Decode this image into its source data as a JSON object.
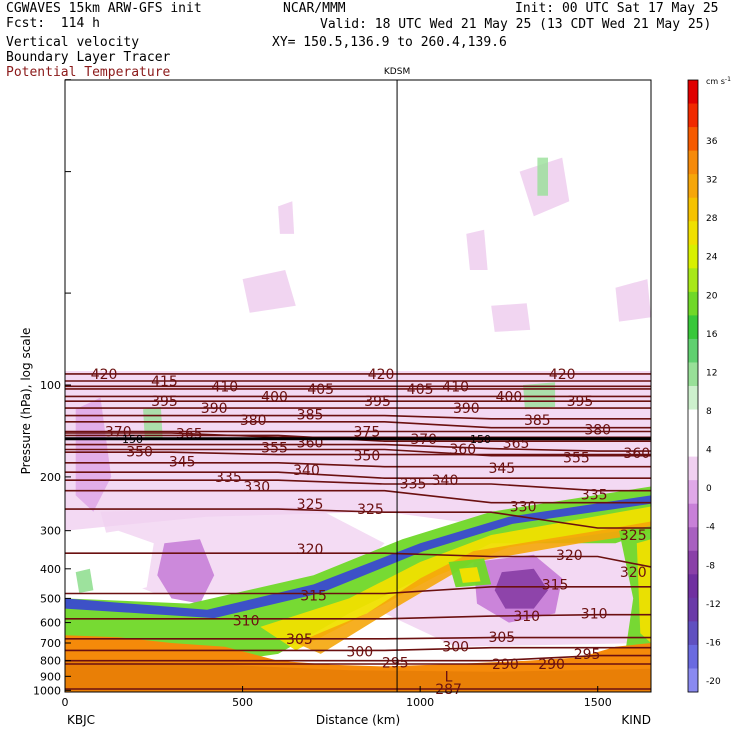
{
  "header": {
    "model": "CGWAVES 15km ARW-GFS init",
    "forecast": "Fcst:  114 h",
    "org": "NCAR/MMM",
    "init": "Init: 00 UTC Sat 17 May 25",
    "valid": "Valid: 18 UTC Wed 21 May 25 (13 CDT Wed 21 May 25)",
    "xy": "XY= 150.5,136.9 to 260.4,139.6",
    "fields": [
      "Vertical velocity",
      "Boundary Layer Tracer",
      "Potential Temperature"
    ]
  },
  "colors": {
    "theta": "#6b1010",
    "terrain": "#f58a0a",
    "terrain_dark": "#d46a00"
  },
  "chart_data": {
    "type": "heatmap",
    "xlabel": "Distance (km)",
    "ylabel": "Pressure (hPa), log scale",
    "x_ticks": [
      0,
      500,
      1000,
      1500
    ],
    "xlim": [
      0,
      1650
    ],
    "y_ticks": [
      100,
      200,
      300,
      400,
      500,
      600,
      700,
      800,
      900,
      1000
    ],
    "y_scale": "log",
    "endpoints": {
      "left": "KBJC",
      "right": "KIND"
    },
    "station_marker": {
      "label": "KDSM",
      "x": 935
    },
    "tropopause_marker": {
      "label": "150",
      "pressure": 150
    },
    "colorbar": {
      "unit": "cm s",
      "unit_exp": "-1",
      "ticks": [
        36,
        32,
        28,
        24,
        20,
        16,
        12,
        8,
        4,
        0,
        -4,
        -8,
        -12,
        -16,
        -20
      ],
      "colors": [
        "#e00000",
        "#f02a00",
        "#f55a00",
        "#f58a0a",
        "#f5a60a",
        "#f5c200",
        "#f0e000",
        "#d8f000",
        "#a8e818",
        "#70d828",
        "#38c83a",
        "#60d070",
        "#98e098",
        "#cdf0cd",
        "#ffffff",
        "#ffffff",
        "#f0d0f0",
        "#e0a8e8",
        "#c880d8",
        "#a860c0",
        "#8a40a8",
        "#7030a0",
        "#6a3aa8",
        "#6050c0",
        "#6a6ae0",
        "#8a8af0"
      ]
    },
    "theta_contours": [
      {
        "value": 420,
        "labels": [
          {
            "x": 110,
            "p": 92
          },
          {
            "x": 890,
            "p": 92
          },
          {
            "x": 1400,
            "p": 92
          }
        ]
      },
      {
        "value": 415,
        "labels": [
          {
            "x": 280,
            "p": 97
          }
        ]
      },
      {
        "value": 410,
        "labels": [
          {
            "x": 450,
            "p": 101
          },
          {
            "x": 1100,
            "p": 101
          }
        ]
      },
      {
        "value": 405,
        "labels": [
          {
            "x": 720,
            "p": 103
          },
          {
            "x": 1000,
            "p": 103
          }
        ]
      },
      {
        "value": 400,
        "labels": [
          {
            "x": 590,
            "p": 109
          },
          {
            "x": 1250,
            "p": 109
          }
        ]
      },
      {
        "value": 395,
        "labels": [
          {
            "x": 280,
            "p": 113
          },
          {
            "x": 880,
            "p": 113
          },
          {
            "x": 1450,
            "p": 113
          }
        ]
      },
      {
        "value": 390,
        "labels": [
          {
            "x": 420,
            "p": 119
          },
          {
            "x": 1130,
            "p": 119
          }
        ]
      },
      {
        "value": 385,
        "labels": [
          {
            "x": 690,
            "p": 125
          },
          {
            "x": 1330,
            "p": 130
          }
        ]
      },
      {
        "value": 380,
        "labels": [
          {
            "x": 530,
            "p": 130
          },
          {
            "x": 1500,
            "p": 140
          }
        ]
      },
      {
        "value": 375,
        "labels": [
          {
            "x": 850,
            "p": 142
          }
        ]
      },
      {
        "value": 370,
        "labels": [
          {
            "x": 1010,
            "p": 150
          },
          {
            "x": 150,
            "p": 142
          }
        ]
      },
      {
        "value": 365,
        "labels": [
          {
            "x": 350,
            "p": 144
          },
          {
            "x": 1270,
            "p": 155
          }
        ]
      },
      {
        "value": 360,
        "labels": [
          {
            "x": 690,
            "p": 154
          },
          {
            "x": 1120,
            "p": 162
          },
          {
            "x": 1610,
            "p": 167
          }
        ]
      },
      {
        "value": 355,
        "labels": [
          {
            "x": 590,
            "p": 160
          },
          {
            "x": 1440,
            "p": 173
          }
        ]
      },
      {
        "value": 350,
        "labels": [
          {
            "x": 210,
            "p": 165
          },
          {
            "x": 850,
            "p": 170
          }
        ]
      },
      {
        "value": 345,
        "labels": [
          {
            "x": 330,
            "p": 178
          },
          {
            "x": 1230,
            "p": 187
          }
        ]
      },
      {
        "value": 340,
        "labels": [
          {
            "x": 680,
            "p": 190
          },
          {
            "x": 1070,
            "p": 205
          }
        ]
      },
      {
        "value": 335,
        "labels": [
          {
            "x": 460,
            "p": 200
          },
          {
            "x": 980,
            "p": 210
          },
          {
            "x": 1490,
            "p": 228
          }
        ]
      },
      {
        "value": 330,
        "labels": [
          {
            "x": 540,
            "p": 215
          },
          {
            "x": 1290,
            "p": 250
          }
        ]
      },
      {
        "value": 325,
        "labels": [
          {
            "x": 690,
            "p": 245
          },
          {
            "x": 860,
            "p": 255
          },
          {
            "x": 1600,
            "p": 310
          }
        ]
      },
      {
        "value": 320,
        "labels": [
          {
            "x": 690,
            "p": 345
          },
          {
            "x": 1420,
            "p": 360
          },
          {
            "x": 1600,
            "p": 410
          }
        ]
      },
      {
        "value": 315,
        "labels": [
          {
            "x": 700,
            "p": 490
          },
          {
            "x": 1380,
            "p": 450
          }
        ]
      },
      {
        "value": 310,
        "labels": [
          {
            "x": 510,
            "p": 590
          },
          {
            "x": 1300,
            "p": 570
          },
          {
            "x": 1490,
            "p": 560
          }
        ]
      },
      {
        "value": 305,
        "labels": [
          {
            "x": 660,
            "p": 680
          },
          {
            "x": 1230,
            "p": 670
          }
        ]
      },
      {
        "value": 300,
        "labels": [
          {
            "x": 830,
            "p": 745
          },
          {
            "x": 1100,
            "p": 720
          }
        ]
      },
      {
        "value": 295,
        "labels": [
          {
            "x": 930,
            "p": 810
          },
          {
            "x": 1470,
            "p": 760
          }
        ]
      },
      {
        "value": 290,
        "labels": [
          {
            "x": 1240,
            "p": 820
          },
          {
            "x": 1370,
            "p": 820
          }
        ]
      },
      {
        "value": 287,
        "labels": [
          {
            "x": 1080,
            "p": 990
          }
        ]
      }
    ],
    "low_marker": {
      "label": "L",
      "x": 1080,
      "p": 900
    }
  }
}
